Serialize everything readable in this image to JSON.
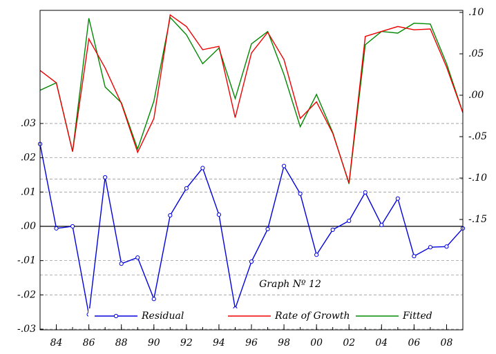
{
  "chart_data": {
    "type": "line",
    "annotation": "Graph Nº 12",
    "x": [
      1983,
      1984,
      1985,
      1986,
      1987,
      1988,
      1989,
      1990,
      1991,
      1992,
      1993,
      1994,
      1995,
      1996,
      1997,
      1998,
      1999,
      2000,
      2001,
      2002,
      2003,
      2004,
      2005,
      2006,
      2007,
      2008,
      2009
    ],
    "series": [
      {
        "name": "Residual",
        "color": "#0000dd",
        "axis": "y",
        "marker": true,
        "values": [
          0.024,
          -0.0006,
          0,
          -0.0257,
          0.0143,
          -0.0109,
          -0.0091,
          -0.0212,
          0.0032,
          0.0111,
          0.017,
          0.0034,
          -0.024,
          -0.0103,
          -0.0008,
          0.0176,
          0.0095,
          -0.0083,
          -0.001,
          0.0016,
          0.0099,
          0.0004,
          0.0081,
          -0.0087,
          -0.0061,
          -0.0059,
          -0.0006
        ]
      },
      {
        "name": "Rate of Growth",
        "color": "#ee0000",
        "axis": "y2",
        "marker": false,
        "values": [
          0.03,
          0.015,
          -0.068,
          0.068,
          0.033,
          -0.01,
          -0.069,
          -0.028,
          0.097,
          0.083,
          0.055,
          0.059,
          -0.027,
          0.051,
          0.076,
          0.043,
          -0.028,
          -0.008,
          -0.046,
          -0.106,
          0.071,
          0.077,
          0.083,
          0.079,
          0.08,
          0.034,
          -0.021
        ]
      },
      {
        "name": "Fitted",
        "color": "#008800",
        "axis": "y2",
        "marker": false,
        "values": [
          0.006,
          0.015,
          -0.068,
          0.093,
          0.01,
          -0.009,
          -0.065,
          -0.007,
          0.094,
          0.073,
          0.038,
          0.057,
          -0.004,
          0.062,
          0.077,
          0.025,
          -0.038,
          0.001,
          -0.045,
          -0.107,
          0.061,
          0.077,
          0.075,
          0.087,
          0.086,
          0.038,
          -0.021
        ]
      }
    ],
    "xlim": [
      1983,
      2009
    ],
    "xticks": [
      {
        "value": 1984,
        "label": "84"
      },
      {
        "value": 1986,
        "label": "86"
      },
      {
        "value": 1988,
        "label": "88"
      },
      {
        "value": 1990,
        "label": "90"
      },
      {
        "value": 1992,
        "label": "92"
      },
      {
        "value": 1994,
        "label": "94"
      },
      {
        "value": 1996,
        "label": "96"
      },
      {
        "value": 1998,
        "label": "98"
      },
      {
        "value": 2000,
        "label": "00"
      },
      {
        "value": 2002,
        "label": "02"
      },
      {
        "value": 2004,
        "label": "04"
      },
      {
        "value": 2006,
        "label": "06"
      },
      {
        "value": 2008,
        "label": "08"
      }
    ],
    "ylim": [
      -0.0302,
      0.063
    ],
    "yticks": [
      {
        "value": 0.03,
        "label": ".03"
      },
      {
        "value": 0.02,
        "label": ".02"
      },
      {
        "value": 0.01,
        "label": ".01"
      },
      {
        "value": 0,
        "label": ".00"
      },
      {
        "value": -0.01,
        "label": "-.01"
      },
      {
        "value": -0.02,
        "label": "-.02"
      },
      {
        "value": -0.03,
        "label": "-.03"
      }
    ],
    "y2lim": [
      -0.2833,
      0.1025
    ],
    "y2ticks": [
      {
        "value": 0.1,
        "label": ".10"
      },
      {
        "value": 0.05,
        "label": ".05"
      },
      {
        "value": 0,
        "label": ".00"
      },
      {
        "value": -0.05,
        "label": "-.05"
      },
      {
        "value": -0.1,
        "label": "-.10"
      },
      {
        "value": -0.15,
        "label": "-.15"
      }
    ],
    "residual_band": [
      0.0138,
      -0.0142
    ],
    "grid": true
  }
}
